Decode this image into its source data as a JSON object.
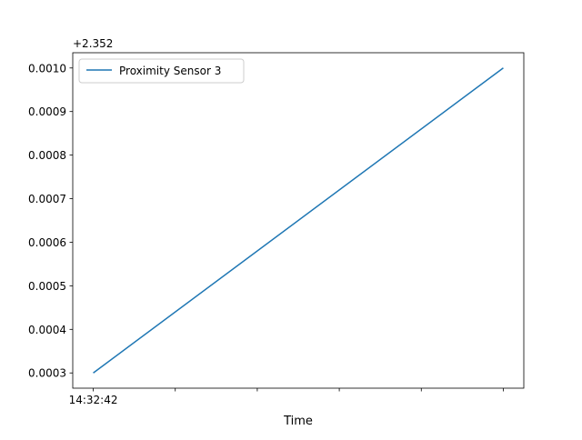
{
  "chart_data": {
    "type": "line",
    "title": "",
    "xlabel": "Time",
    "ylabel": "",
    "y_offset_label": "+2.352",
    "x_tick_labels": [
      "14:32:42",
      "",
      "",
      "",
      "",
      ""
    ],
    "y_tick_labels": [
      "0.0003",
      "0.0004",
      "0.0005",
      "0.0006",
      "0.0007",
      "0.0008",
      "0.0009",
      "0.0010"
    ],
    "ylim": [
      2.352265,
      2.353035
    ],
    "grid": false,
    "legend_position": "upper-left",
    "series": [
      {
        "name": "Proximity Sensor 3",
        "color": "#1f77b4",
        "x": [
          "14:32:42",
          "14:32:47"
        ],
        "y": [
          2.3523,
          2.353
        ]
      }
    ]
  }
}
